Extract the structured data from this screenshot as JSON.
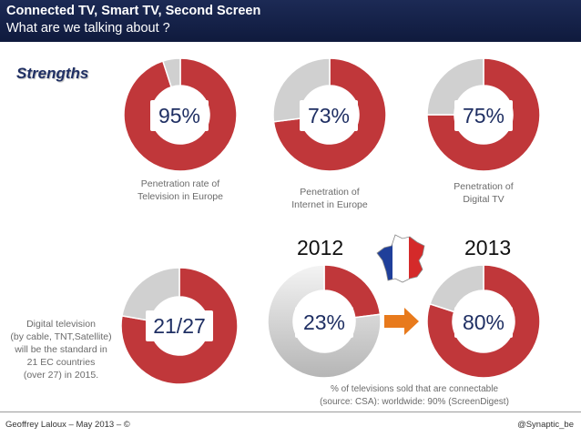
{
  "header": {
    "title": "Connected TV, Smart TV, Second Screen",
    "subtitle": "What are we talking about ?"
  },
  "section_label": "Strengths",
  "years": {
    "left": "2012",
    "right": "2013"
  },
  "captions": {
    "tv_europe": [
      "Penetration rate of",
      "Television in Europe"
    ],
    "internet_europe": [
      "Penetration of",
      "Internet in Europe"
    ],
    "digital_tv": [
      "Penetration of",
      "Digital TV"
    ],
    "digital_standard": [
      "Digital television",
      "(by cable, TNT,Satellite)",
      "will be the standard in",
      "21 EC countries",
      "(over 27) in 2015."
    ],
    "connectable": [
      "% of televisions sold that are connectable",
      "(source: CSA): worldwide: 90% (ScreenDigest)"
    ]
  },
  "footer": {
    "left": "Geoffrey Laloux – May 2013 – ©",
    "right": "@Synaptic_be"
  },
  "colors": {
    "accent": "#c0373a",
    "rest": "#d0d0d0",
    "navy": "#1f2f63",
    "arrow": "#e87a1c"
  },
  "chart_data": [
    {
      "type": "pie",
      "id": "tv_europe",
      "label": "95%",
      "values": [
        95,
        5
      ],
      "title": "Penetration rate of Television in Europe"
    },
    {
      "type": "pie",
      "id": "internet_europe",
      "label": "73%",
      "values": [
        73,
        27
      ],
      "title": "Penetration of Internet in Europe"
    },
    {
      "type": "pie",
      "id": "digital_tv",
      "label": "75%",
      "values": [
        75,
        25
      ],
      "title": "Penetration of Digital TV"
    },
    {
      "type": "pie",
      "id": "digital_standard",
      "label": "21/27",
      "values": [
        21,
        6
      ],
      "title": "Digital television will be the standard in 21 EC countries (over 27) in 2015"
    },
    {
      "type": "pie",
      "id": "connectable_2012",
      "label": "23%",
      "values": [
        23,
        77
      ],
      "title": "2012"
    },
    {
      "type": "pie",
      "id": "connectable_2013",
      "label": "80%",
      "values": [
        80,
        20
      ],
      "title": "2013"
    }
  ]
}
